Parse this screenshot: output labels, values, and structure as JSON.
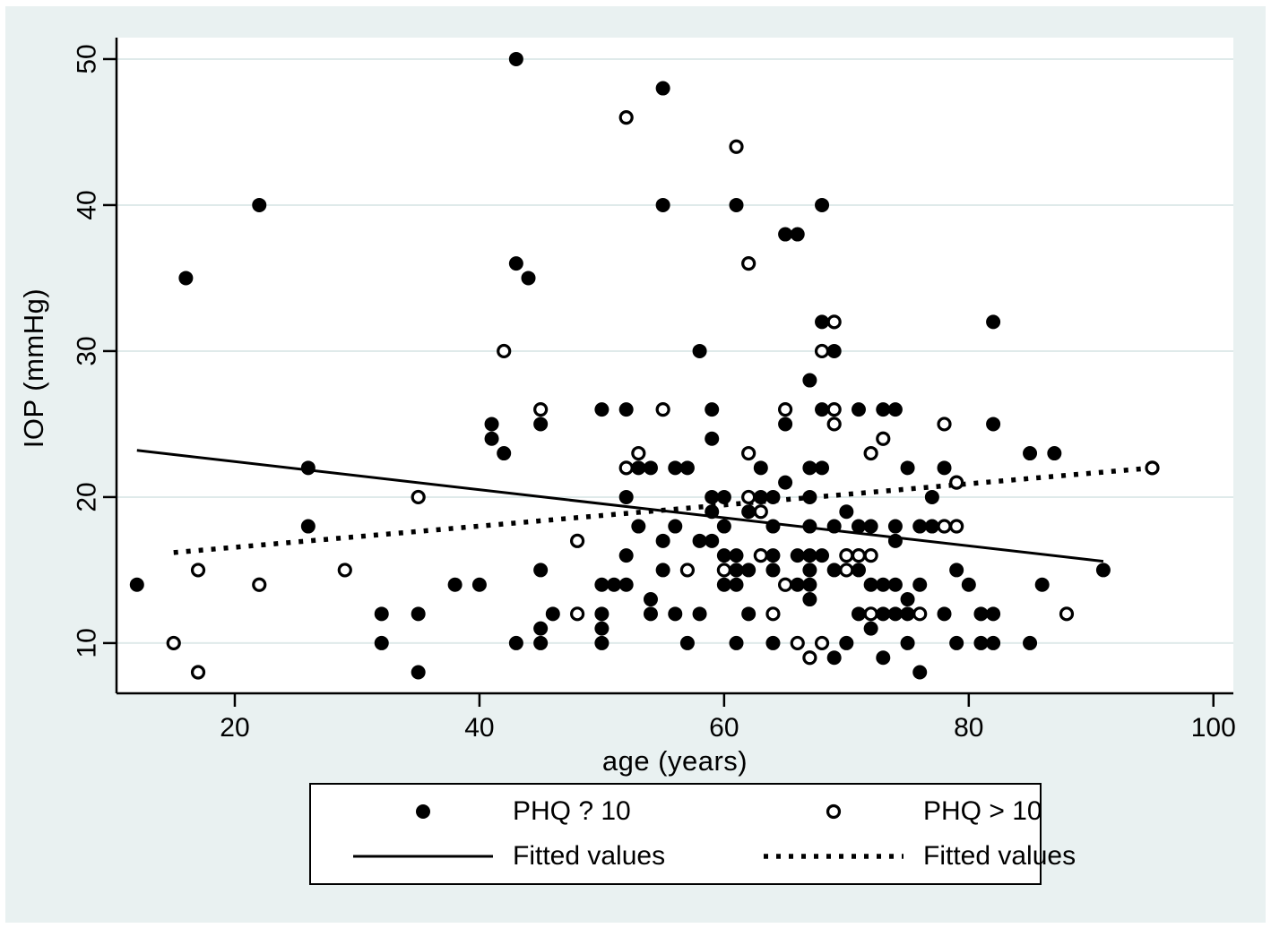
{
  "figure": {
    "background_color": "#e9f1f1",
    "plot_background_color": "#ffffff",
    "grid_color": "#dfeaea",
    "ink_color": "#000000",
    "legend_border_color": "#000000"
  },
  "chart_data": {
    "type": "scatter",
    "title": "",
    "xlabel": "age (years)",
    "ylabel": "IOP (mmHg)",
    "x_ticks": [
      20,
      40,
      60,
      80,
      100
    ],
    "y_ticks": [
      10,
      20,
      30,
      40,
      50
    ],
    "xlim": [
      10.33,
      101.63
    ],
    "ylim": [
      6.56,
      51.47
    ],
    "grid": "horizontal-only",
    "legend_position": "bottom-box",
    "series": [
      {
        "name": "PHQ ? 10",
        "marker": "filled-circle",
        "points": [
          [
            43,
            50
          ],
          [
            55,
            48
          ],
          [
            22,
            40
          ],
          [
            55,
            40
          ],
          [
            61,
            40
          ],
          [
            68,
            40
          ],
          [
            65,
            38
          ],
          [
            66,
            38
          ],
          [
            43,
            36
          ],
          [
            16,
            35
          ],
          [
            44,
            35
          ],
          [
            68,
            32
          ],
          [
            82,
            32
          ],
          [
            58,
            30
          ],
          [
            69,
            30
          ],
          [
            67,
            28
          ],
          [
            50,
            26
          ],
          [
            52,
            26
          ],
          [
            59,
            26
          ],
          [
            68,
            26
          ],
          [
            71,
            26
          ],
          [
            73,
            26
          ],
          [
            74,
            26
          ],
          [
            41,
            25
          ],
          [
            45,
            25
          ],
          [
            65,
            25
          ],
          [
            82,
            25
          ],
          [
            41,
            24
          ],
          [
            59,
            24
          ],
          [
            42,
            23
          ],
          [
            85,
            23
          ],
          [
            87,
            23
          ],
          [
            26,
            22
          ],
          [
            53,
            22
          ],
          [
            54,
            22
          ],
          [
            56,
            22
          ],
          [
            57,
            22
          ],
          [
            63,
            22
          ],
          [
            67,
            22
          ],
          [
            68,
            22
          ],
          [
            75,
            22
          ],
          [
            78,
            22
          ],
          [
            65,
            21
          ],
          [
            52,
            20
          ],
          [
            59,
            20
          ],
          [
            60,
            20
          ],
          [
            63,
            20
          ],
          [
            64,
            20
          ],
          [
            67,
            20
          ],
          [
            77,
            20
          ],
          [
            59,
            19
          ],
          [
            62,
            19
          ],
          [
            70,
            19
          ],
          [
            26,
            18
          ],
          [
            53,
            18
          ],
          [
            56,
            18
          ],
          [
            60,
            18
          ],
          [
            64,
            18
          ],
          [
            67,
            18
          ],
          [
            69,
            18
          ],
          [
            71,
            18
          ],
          [
            72,
            18
          ],
          [
            74,
            18
          ],
          [
            76,
            18
          ],
          [
            77,
            18
          ],
          [
            55,
            17
          ],
          [
            58,
            17
          ],
          [
            59,
            17
          ],
          [
            74,
            17
          ],
          [
            52,
            16
          ],
          [
            60,
            16
          ],
          [
            61,
            16
          ],
          [
            64,
            16
          ],
          [
            66,
            16
          ],
          [
            67,
            16
          ],
          [
            68,
            16
          ],
          [
            45,
            15
          ],
          [
            55,
            15
          ],
          [
            61,
            15
          ],
          [
            62,
            15
          ],
          [
            64,
            15
          ],
          [
            67,
            15
          ],
          [
            69,
            15
          ],
          [
            71,
            15
          ],
          [
            79,
            15
          ],
          [
            91,
            15
          ],
          [
            12,
            14
          ],
          [
            38,
            14
          ],
          [
            40,
            14
          ],
          [
            50,
            14
          ],
          [
            51,
            14
          ],
          [
            52,
            14
          ],
          [
            60,
            14
          ],
          [
            61,
            14
          ],
          [
            66,
            14
          ],
          [
            67,
            14
          ],
          [
            72,
            14
          ],
          [
            73,
            14
          ],
          [
            74,
            14
          ],
          [
            76,
            14
          ],
          [
            80,
            14
          ],
          [
            86,
            14
          ],
          [
            54,
            13
          ],
          [
            67,
            13
          ],
          [
            75,
            13
          ],
          [
            32,
            12
          ],
          [
            35,
            12
          ],
          [
            46,
            12
          ],
          [
            50,
            12
          ],
          [
            54,
            12
          ],
          [
            56,
            12
          ],
          [
            58,
            12
          ],
          [
            62,
            12
          ],
          [
            71,
            12
          ],
          [
            73,
            12
          ],
          [
            74,
            12
          ],
          [
            75,
            12
          ],
          [
            78,
            12
          ],
          [
            81,
            12
          ],
          [
            82,
            12
          ],
          [
            45,
            11
          ],
          [
            50,
            11
          ],
          [
            72,
            11
          ],
          [
            32,
            10
          ],
          [
            43,
            10
          ],
          [
            45,
            10
          ],
          [
            50,
            10
          ],
          [
            57,
            10
          ],
          [
            61,
            10
          ],
          [
            64,
            10
          ],
          [
            70,
            10
          ],
          [
            75,
            10
          ],
          [
            79,
            10
          ],
          [
            81,
            10
          ],
          [
            82,
            10
          ],
          [
            85,
            10
          ],
          [
            69,
            9
          ],
          [
            73,
            9
          ],
          [
            35,
            8
          ],
          [
            76,
            8
          ]
        ]
      },
      {
        "name": "PHQ > 10",
        "marker": "open-circle",
        "points": [
          [
            52,
            46
          ],
          [
            61,
            44
          ],
          [
            62,
            36
          ],
          [
            69,
            32
          ],
          [
            42,
            30
          ],
          [
            68,
            30
          ],
          [
            45,
            26
          ],
          [
            55,
            26
          ],
          [
            65,
            26
          ],
          [
            69,
            26
          ],
          [
            69,
            25
          ],
          [
            78,
            25
          ],
          [
            73,
            24
          ],
          [
            53,
            23
          ],
          [
            62,
            23
          ],
          [
            72,
            23
          ],
          [
            52,
            22
          ],
          [
            95,
            22
          ],
          [
            79,
            21
          ],
          [
            35,
            20
          ],
          [
            62,
            20
          ],
          [
            63,
            19
          ],
          [
            78,
            18
          ],
          [
            79,
            18
          ],
          [
            48,
            17
          ],
          [
            63,
            16
          ],
          [
            70,
            16
          ],
          [
            71,
            16
          ],
          [
            72,
            16
          ],
          [
            17,
            15
          ],
          [
            29,
            15
          ],
          [
            57,
            15
          ],
          [
            60,
            15
          ],
          [
            70,
            15
          ],
          [
            22,
            14
          ],
          [
            65,
            14
          ],
          [
            48,
            12
          ],
          [
            64,
            12
          ],
          [
            72,
            12
          ],
          [
            76,
            12
          ],
          [
            88,
            12
          ],
          [
            15,
            10
          ],
          [
            66,
            10
          ],
          [
            68,
            10
          ],
          [
            67,
            9
          ],
          [
            17,
            8
          ]
        ]
      },
      {
        "name": "Fitted values",
        "line_style": "solid",
        "points": [
          [
            12,
            23.2
          ],
          [
            91,
            15.6
          ]
        ]
      },
      {
        "name": "Fitted values",
        "line_style": "dotted",
        "points": [
          [
            15,
            16.2
          ],
          [
            95,
            22.0
          ]
        ]
      }
    ]
  },
  "legend": {
    "items": [
      {
        "symbol": "filled-circle",
        "label": "PHQ ? 10"
      },
      {
        "symbol": "open-circle",
        "label": "PHQ > 10"
      },
      {
        "symbol": "solid-line",
        "label": "Fitted values"
      },
      {
        "symbol": "dotted-line",
        "label": "Fitted values"
      }
    ]
  }
}
